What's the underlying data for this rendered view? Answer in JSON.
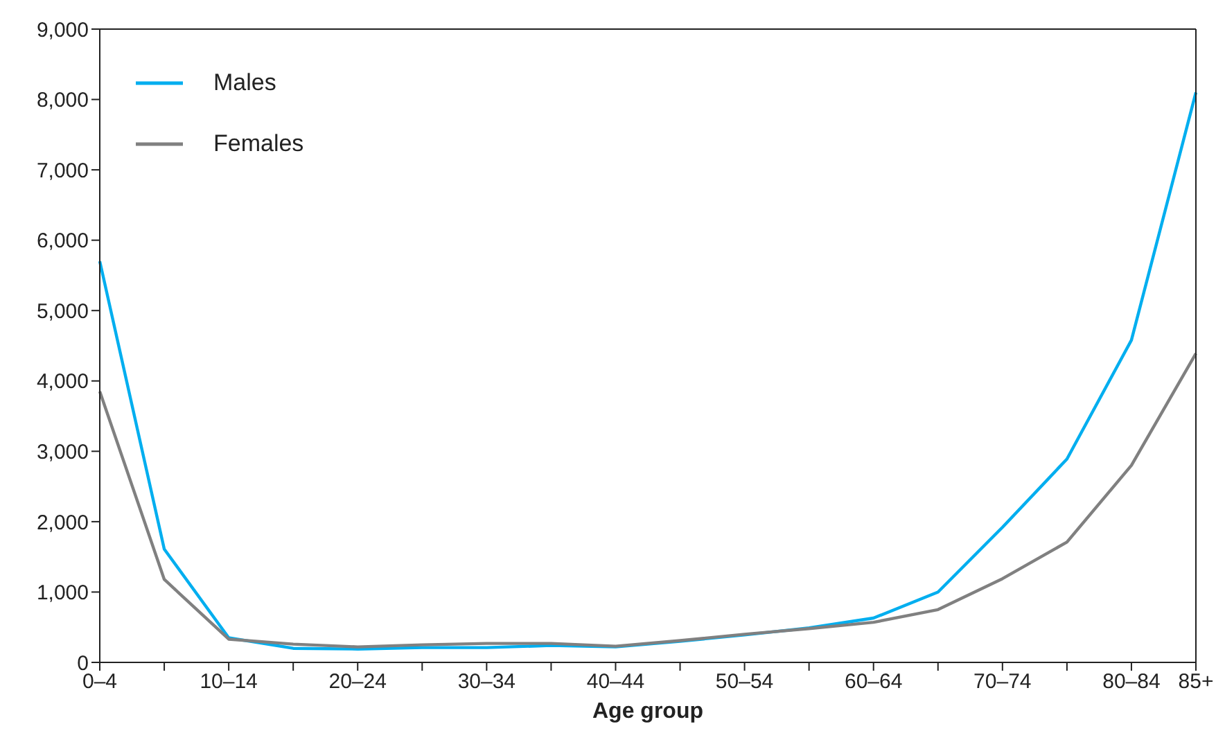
{
  "chart_data": {
    "type": "line",
    "xlabel": "Age group",
    "categories": [
      "0–4",
      null,
      "10–14",
      null,
      "20–24",
      null,
      "30–34",
      null,
      "40–44",
      null,
      "50–54",
      null,
      "60–64",
      null,
      "70–74",
      null,
      "80–84",
      "85+"
    ],
    "series": [
      {
        "name": "Males",
        "color": "#00aeef",
        "values": [
          5700,
          1610,
          350,
          200,
          190,
          210,
          210,
          240,
          220,
          300,
          390,
          490,
          630,
          1000,
          1920,
          2890,
          4580,
          8100
        ]
      },
      {
        "name": "Females",
        "color": "#808080",
        "values": [
          3850,
          1180,
          330,
          260,
          220,
          250,
          270,
          270,
          230,
          310,
          400,
          480,
          570,
          750,
          1190,
          1710,
          2800,
          4390
        ]
      }
    ],
    "ylim": [
      0,
      9000
    ],
    "yticks": [
      0,
      {
        "value": 1000,
        "label": "1,000"
      },
      {
        "value": 2000,
        "label": "2,000"
      },
      {
        "value": 3000,
        "label": "3,000"
      },
      {
        "value": 4000,
        "label": "4,000"
      },
      {
        "value": 5000,
        "label": "5,000"
      },
      {
        "value": 6000,
        "label": "6,000"
      },
      {
        "value": 7000,
        "label": "7,000"
      },
      {
        "value": 8000,
        "label": "8,000"
      },
      {
        "value": 9000,
        "label": "9,000"
      }
    ],
    "grid": false,
    "legend": "top left",
    "marker": "none",
    "line_style": "solid"
  }
}
